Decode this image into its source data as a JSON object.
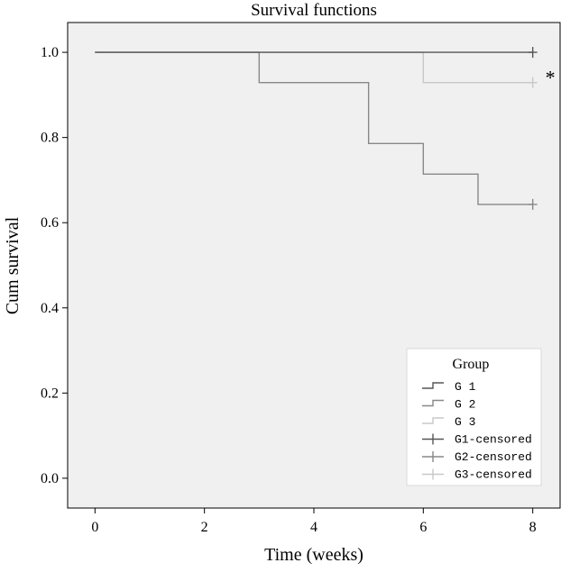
{
  "chart_data": {
    "type": "line",
    "title": "Survival functions",
    "xlabel": "Time (weeks)",
    "ylabel": "Cum survival",
    "xlim": [
      -0.5,
      8.5
    ],
    "ylim": [
      -0.07,
      1.07
    ],
    "x_ticks": [
      0,
      2,
      4,
      6,
      8
    ],
    "x_tick_labels": [
      "0",
      "2",
      "4",
      "6",
      "8"
    ],
    "y_ticks": [
      0.0,
      0.2,
      0.4,
      0.6,
      0.8,
      1.0
    ],
    "y_tick_labels": [
      "0.0",
      "0.2",
      "0.4",
      "0.6",
      "0.8",
      "1.0"
    ],
    "step": "post",
    "grid": false,
    "legend_position": "bottom-right",
    "legend_title": "Group",
    "series": [
      {
        "name": "G 1",
        "color": "#555555",
        "x": [
          0,
          8
        ],
        "y": [
          1.0,
          1.0
        ],
        "censored": [
          {
            "x": 8,
            "y": 1.0
          }
        ],
        "censored_label": "G1-censored"
      },
      {
        "name": "G 2",
        "color": "#888888",
        "x": [
          0,
          3,
          5,
          6,
          7,
          8
        ],
        "y": [
          1.0,
          0.929,
          0.786,
          0.714,
          0.643,
          0.643
        ],
        "censored": [
          {
            "x": 8,
            "y": 0.643
          }
        ],
        "censored_label": "G2-censored"
      },
      {
        "name": "G 3",
        "color": "#c8c8c8",
        "x": [
          0,
          6,
          8
        ],
        "y": [
          1.0,
          0.929,
          0.929
        ],
        "censored": [
          {
            "x": 8,
            "y": 0.929
          }
        ],
        "censored_label": "G3-censored"
      }
    ],
    "annotations": [
      {
        "text": "*",
        "series": "G 3",
        "x": 8,
        "y": 0.929
      }
    ]
  }
}
